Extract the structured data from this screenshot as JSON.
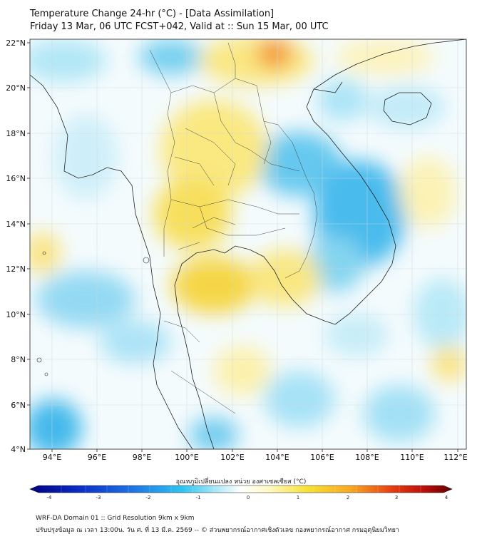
{
  "header": {
    "title": "Temperature Change 24-hr (°C) - [Data Assimilation]",
    "subtitle": "Friday 13 Mar, 06 UTC FCST+042, Valid at :: Sun 15 Mar, 00 UTC"
  },
  "map": {
    "lat_labels": [
      "22°N",
      "20°N",
      "18°N",
      "16°N",
      "14°N",
      "12°N",
      "10°N",
      "8°N",
      "6°N",
      "4°N"
    ],
    "lon_labels": [
      "94°E",
      "96°E",
      "98°E",
      "100°E",
      "102°E",
      "104°E",
      "106°E",
      "108°E",
      "110°E",
      "112°E"
    ],
    "lat_range": [
      4,
      22
    ],
    "lon_range": [
      93,
      112.3
    ]
  },
  "colorbar": {
    "title": "อุณหภูมิเปลี่ยนแปลง หน่วย องศาเซลเซียส (°C)",
    "ticks": [
      "-4",
      "-3",
      "-2",
      "-1",
      "0",
      "1",
      "2",
      "3",
      "4"
    ],
    "range": [
      -4,
      4
    ],
    "colors": [
      "#000080",
      "#0a2ec8",
      "#1e78e6",
      "#2cc4f0",
      "#9ee6f8",
      "#ffffff",
      "#fff8b0",
      "#f8e030",
      "#f8a820",
      "#e83a10",
      "#b80a0a",
      "#600000"
    ]
  },
  "footer": {
    "line1": "WRF-DA Domain 01 :: Grid Resolution 9km x 9km",
    "line2": "ปรับปรุงข้อมูล ณ เวลา 13:00น. วัน ศ. ที่ 13 มี.ค. 2569 -- © ส่วนพยากรณ์อากาศเชิงตัวเลข กองพยากรณ์อากาศ กรมอุตุนิยมวิทยา"
  }
}
